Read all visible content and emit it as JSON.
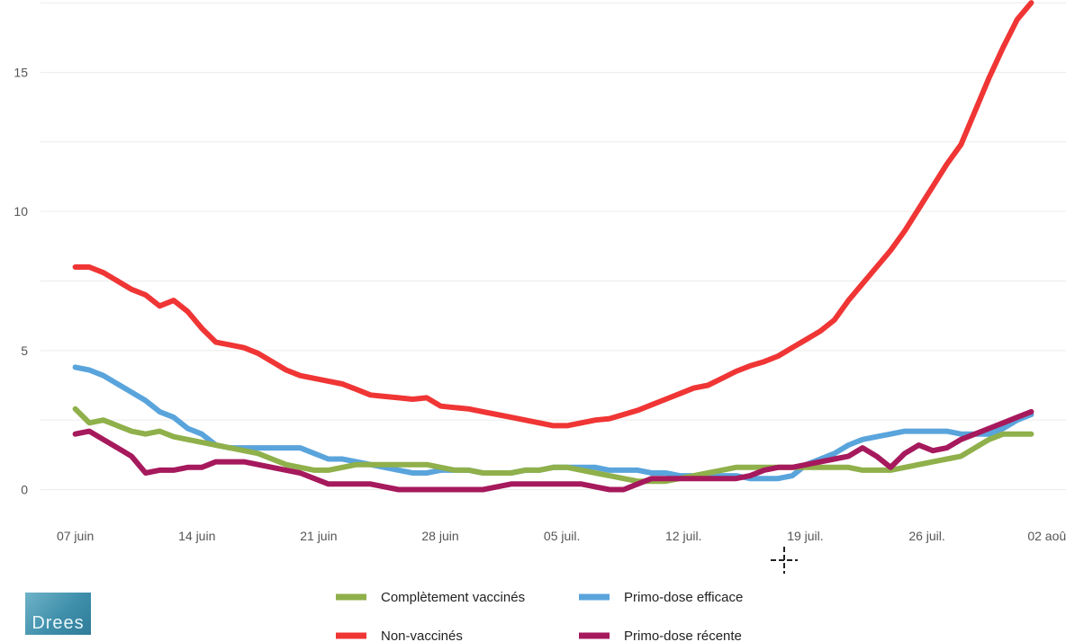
{
  "chart_data": {
    "type": "line",
    "title": "",
    "xlabel": "",
    "ylabel": "",
    "x_start": "2021-06-07",
    "x_end": "2021-08-01",
    "xlim": [
      "2021-06-05",
      "2021-08-03"
    ],
    "ylim": [
      -0.5,
      17.6
    ],
    "grid": true,
    "legend_position": "bottom",
    "x_ticks": [
      {
        "date": "2021-06-07",
        "label": "07 juin"
      },
      {
        "date": "2021-06-14",
        "label": "14 juin"
      },
      {
        "date": "2021-06-21",
        "label": "21 juin"
      },
      {
        "date": "2021-06-28",
        "label": "28 juin"
      },
      {
        "date": "2021-07-05",
        "label": "05 juil."
      },
      {
        "date": "2021-07-12",
        "label": "12 juil."
      },
      {
        "date": "2021-07-19",
        "label": "19 juil."
      },
      {
        "date": "2021-07-26",
        "label": "26 juil."
      },
      {
        "date": "2021-08-02",
        "label": "02 août"
      }
    ],
    "y_ticks": [
      {
        "value": 0,
        "label": "0"
      },
      {
        "value": 5,
        "label": "5"
      },
      {
        "value": 10,
        "label": "10"
      },
      {
        "value": 15,
        "label": "15"
      }
    ],
    "series": [
      {
        "name": "Non-vaccinés",
        "color": "#f03535",
        "values": [
          8.0,
          8.0,
          7.8,
          7.5,
          7.2,
          7.0,
          6.6,
          6.8,
          6.4,
          5.8,
          5.3,
          5.2,
          5.1,
          4.9,
          4.6,
          4.3,
          4.1,
          4.0,
          3.9,
          3.8,
          3.6,
          3.4,
          3.35,
          3.3,
          3.25,
          3.3,
          3.0,
          2.95,
          2.9,
          2.8,
          2.7,
          2.6,
          2.5,
          2.4,
          2.3,
          2.3,
          2.4,
          2.5,
          2.55,
          2.7,
          2.85,
          3.05,
          3.25,
          3.45,
          3.65,
          3.75,
          4.0,
          4.25,
          4.45,
          4.6,
          4.8,
          5.1,
          5.4,
          5.7,
          6.1,
          6.8,
          7.4,
          8.0,
          8.6,
          9.3,
          10.1,
          10.9,
          11.7,
          12.4,
          13.6,
          14.8,
          15.9,
          16.9,
          17.5
        ]
      },
      {
        "name": "Primo-dose efficace",
        "color": "#5aa4dc",
        "values": [
          4.4,
          4.3,
          4.1,
          3.8,
          3.5,
          3.2,
          2.8,
          2.6,
          2.2,
          2.0,
          1.6,
          1.5,
          1.5,
          1.5,
          1.5,
          1.5,
          1.5,
          1.3,
          1.1,
          1.1,
          1.0,
          0.9,
          0.8,
          0.7,
          0.6,
          0.6,
          0.7,
          0.7,
          0.7,
          0.6,
          0.6,
          0.6,
          0.7,
          0.7,
          0.8,
          0.8,
          0.8,
          0.8,
          0.7,
          0.7,
          0.7,
          0.6,
          0.6,
          0.5,
          0.5,
          0.5,
          0.5,
          0.5,
          0.4,
          0.4,
          0.4,
          0.5,
          0.9,
          1.1,
          1.3,
          1.6,
          1.8,
          1.9,
          2.0,
          2.1,
          2.1,
          2.1,
          2.1,
          2.0,
          2.0,
          2.0,
          2.2,
          2.5,
          2.7
        ]
      },
      {
        "name": "Complètement vaccinés",
        "color": "#8fb04a",
        "values": [
          2.9,
          2.4,
          2.5,
          2.3,
          2.1,
          2.0,
          2.1,
          1.9,
          1.8,
          1.7,
          1.6,
          1.5,
          1.4,
          1.3,
          1.1,
          0.9,
          0.8,
          0.7,
          0.7,
          0.8,
          0.9,
          0.9,
          0.9,
          0.9,
          0.9,
          0.9,
          0.8,
          0.7,
          0.7,
          0.6,
          0.6,
          0.6,
          0.7,
          0.7,
          0.8,
          0.8,
          0.7,
          0.6,
          0.5,
          0.4,
          0.3,
          0.3,
          0.3,
          0.4,
          0.5,
          0.6,
          0.7,
          0.8,
          0.8,
          0.8,
          0.8,
          0.8,
          0.8,
          0.8,
          0.8,
          0.8,
          0.7,
          0.7,
          0.7,
          0.8,
          0.9,
          1.0,
          1.1,
          1.2,
          1.5,
          1.8,
          2.0,
          2.0,
          2.0
        ]
      },
      {
        "name": "Primo-dose récente",
        "color": "#a6195c",
        "values": [
          2.0,
          2.1,
          1.8,
          1.5,
          1.2,
          0.6,
          0.7,
          0.7,
          0.8,
          0.8,
          1.0,
          1.0,
          1.0,
          0.9,
          0.8,
          0.7,
          0.6,
          0.4,
          0.2,
          0.2,
          0.2,
          0.2,
          0.1,
          0.0,
          0.0,
          0.0,
          0.0,
          0.0,
          0.0,
          0.0,
          0.1,
          0.2,
          0.2,
          0.2,
          0.2,
          0.2,
          0.2,
          0.1,
          0.0,
          0.0,
          0.2,
          0.4,
          0.4,
          0.4,
          0.4,
          0.4,
          0.4,
          0.4,
          0.5,
          0.7,
          0.8,
          0.8,
          0.9,
          1.0,
          1.1,
          1.2,
          1.5,
          1.2,
          0.8,
          1.3,
          1.6,
          1.4,
          1.5,
          1.8,
          2.0,
          2.2,
          2.4,
          2.6,
          2.8
        ]
      }
    ]
  },
  "legend": {
    "items": [
      {
        "label": "Complètement vaccinés",
        "color": "#8fb04a"
      },
      {
        "label": "Primo-dose efficace",
        "color": "#5aa4dc"
      },
      {
        "label": "Non-vaccinés",
        "color": "#f03535"
      },
      {
        "label": "Primo-dose récente",
        "color": "#a6195c"
      }
    ]
  },
  "logo": {
    "text": "Drees"
  }
}
